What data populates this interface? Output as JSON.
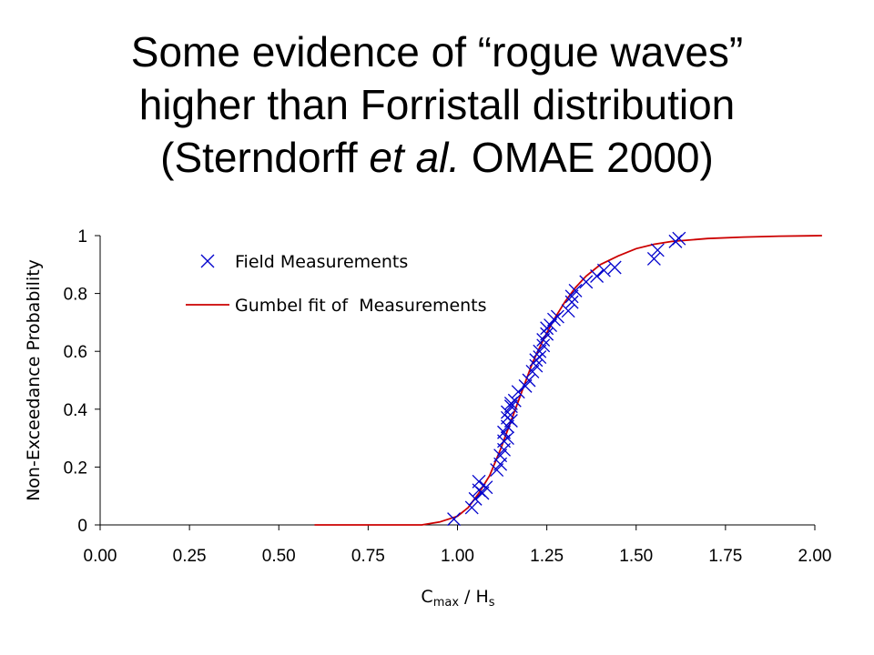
{
  "title": {
    "line1": "Some evidence of “rogue waves”",
    "line2": "higher than Forristall distribution",
    "line3_pre": "(Sterndorff ",
    "line3_italic": "et al.",
    "line3_post": " OMAE 2000)"
  },
  "chart_data": {
    "type": "scatter",
    "xlabel": "C_max / H_s",
    "xlabel_parts": {
      "main": "C",
      "sub1": "max",
      "mid": " / H",
      "sub2": "s"
    },
    "ylabel": "Non-Exceedance Probability",
    "xlim": [
      0,
      2
    ],
    "ylim": [
      0,
      1
    ],
    "x_ticks": [
      "0.00",
      "0.25",
      "0.50",
      "0.75",
      "1.00",
      "1.25",
      "1.50",
      "1.75",
      "2.00"
    ],
    "y_ticks": [
      "0",
      "0.2",
      "0.4",
      "0.6",
      "0.8",
      "1"
    ],
    "grid": false,
    "legend_position": "top-left",
    "series": [
      {
        "name": "Field Measurements",
        "kind": "markers",
        "marker": "x",
        "color": "#0000cc",
        "x": [
          0.99,
          1.04,
          1.05,
          1.06,
          1.06,
          1.07,
          1.08,
          1.11,
          1.12,
          1.12,
          1.13,
          1.13,
          1.13,
          1.14,
          1.14,
          1.14,
          1.14,
          1.15,
          1.15,
          1.15,
          1.16,
          1.17,
          1.19,
          1.2,
          1.21,
          1.22,
          1.22,
          1.23,
          1.23,
          1.24,
          1.24,
          1.25,
          1.25,
          1.26,
          1.27,
          1.28,
          1.31,
          1.32,
          1.32,
          1.33,
          1.36,
          1.39,
          1.41,
          1.44,
          1.55,
          1.56,
          1.61,
          1.62
        ],
        "y": [
          0.02,
          0.06,
          0.09,
          0.12,
          0.15,
          0.11,
          0.13,
          0.19,
          0.21,
          0.24,
          0.26,
          0.29,
          0.32,
          0.3,
          0.34,
          0.37,
          0.39,
          0.36,
          0.41,
          0.42,
          0.43,
          0.46,
          0.48,
          0.5,
          0.53,
          0.55,
          0.57,
          0.58,
          0.6,
          0.62,
          0.64,
          0.66,
          0.68,
          0.69,
          0.71,
          0.72,
          0.74,
          0.77,
          0.79,
          0.81,
          0.84,
          0.86,
          0.88,
          0.89,
          0.92,
          0.95,
          0.98,
          0.99
        ]
      },
      {
        "name": "Gumbel fit of  Measurements",
        "kind": "line",
        "color": "#cc0000",
        "x": [
          0.6,
          0.7,
          0.8,
          0.9,
          0.95,
          1.0,
          1.03,
          1.06,
          1.09,
          1.12,
          1.15,
          1.18,
          1.21,
          1.24,
          1.27,
          1.3,
          1.33,
          1.36,
          1.4,
          1.45,
          1.5,
          1.55,
          1.6,
          1.7,
          1.8,
          1.9,
          2.02
        ],
        "y": [
          0.0,
          0.0,
          0.0,
          0.0,
          0.01,
          0.03,
          0.06,
          0.11,
          0.17,
          0.26,
          0.36,
          0.46,
          0.56,
          0.64,
          0.71,
          0.77,
          0.82,
          0.86,
          0.9,
          0.93,
          0.955,
          0.97,
          0.98,
          0.99,
          0.995,
          0.998,
          1.0
        ]
      }
    ]
  }
}
